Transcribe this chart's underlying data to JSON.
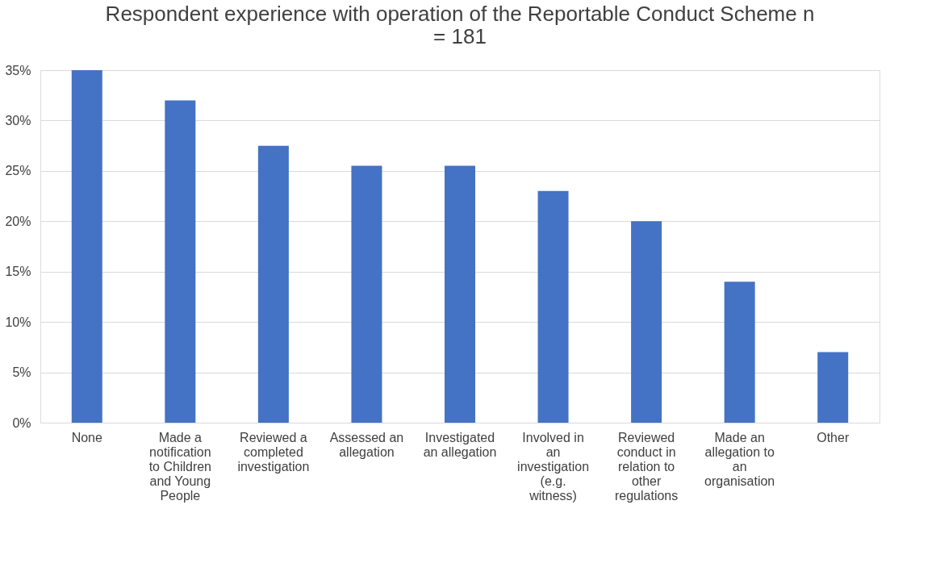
{
  "chart_data": {
    "type": "bar",
    "title": "Respondent experience with operation of the Reportable Conduct Scheme n = 181",
    "categories": [
      "None",
      "Made a notification to Children and Young People",
      "Reviewed a completed investigation",
      "Assessed an allegation",
      "Investigated an allegation",
      "Involved in an investigation (e.g. witness)",
      "Reviewed conduct in relation to other regulations",
      "Made an allegation to an organisation",
      "Other"
    ],
    "values": [
      35,
      32,
      27.5,
      25.5,
      25.5,
      23,
      20,
      14,
      7
    ],
    "color": "#4472c4",
    "ylim": [
      0,
      35
    ],
    "yticks": [
      {
        "value": 0,
        "label": "0%"
      },
      {
        "value": 5,
        "label": "5%"
      },
      {
        "value": 10,
        "label": "10%"
      },
      {
        "value": 15,
        "label": "15%"
      },
      {
        "value": 20,
        "label": "20%"
      },
      {
        "value": 25,
        "label": "25%"
      },
      {
        "value": 30,
        "label": "30%"
      },
      {
        "value": 35,
        "label": "35%"
      }
    ],
    "grid": "y"
  }
}
